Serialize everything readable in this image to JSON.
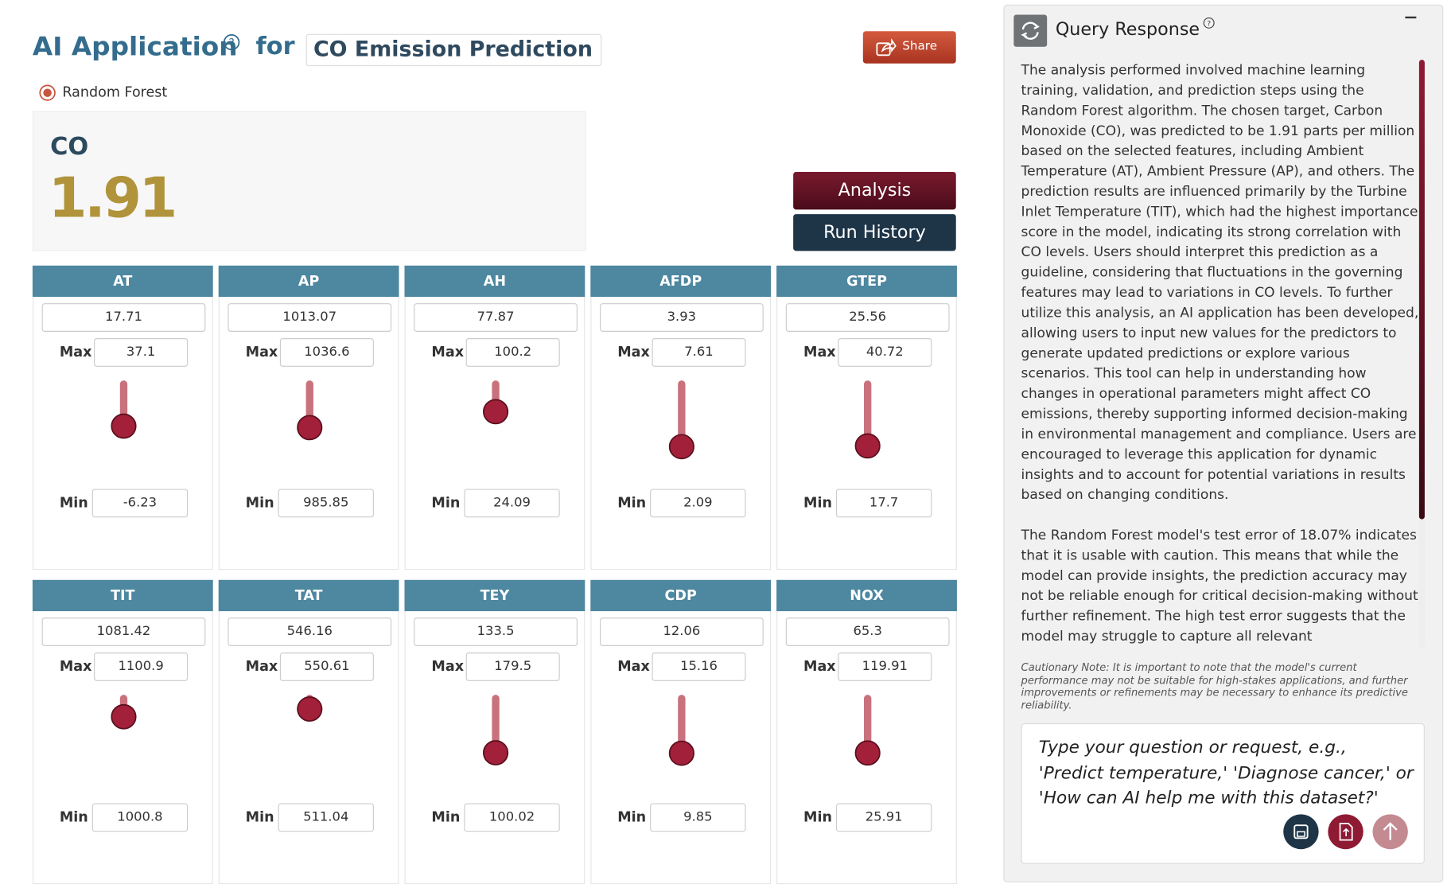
{
  "header": {
    "title": "AI Application",
    "connector": "for",
    "project": "CO Emission Prediction",
    "share": "Share"
  },
  "model": {
    "option": "Random Forest"
  },
  "prediction": {
    "target": "CO",
    "value": "1.91"
  },
  "buttons": {
    "analysis": "Analysis",
    "history": "Run History"
  },
  "labels": {
    "max": "Max",
    "min": "Min"
  },
  "features": [
    {
      "name": "AT",
      "value": 17.71,
      "max": 37.1,
      "min": -6.23
    },
    {
      "name": "AP",
      "value": 1013.07,
      "max": 1036.6,
      "min": 985.85
    },
    {
      "name": "AH",
      "value": 77.87,
      "max": 100.2,
      "min": 24.09
    },
    {
      "name": "AFDP",
      "value": 3.93,
      "max": 7.61,
      "min": 2.09
    },
    {
      "name": "GTEP",
      "value": 25.56,
      "max": 40.72,
      "min": 17.7
    },
    {
      "name": "TIT",
      "value": 1081.42,
      "max": 1100.9,
      "min": 1000.8
    },
    {
      "name": "TAT",
      "value": 546.16,
      "max": 550.61,
      "min": 511.04
    },
    {
      "name": "TEY",
      "value": 133.5,
      "max": 179.5,
      "min": 100.02
    },
    {
      "name": "CDP",
      "value": 12.06,
      "max": 15.16,
      "min": 9.85
    },
    {
      "name": "NOX",
      "value": 65.3,
      "max": 119.91,
      "min": 25.91
    }
  ],
  "panel": {
    "title": "Query Response",
    "paragraphs": [
      "The analysis performed involved machine learning training, validation, and prediction steps using the Random Forest algorithm. The chosen target, Carbon Monoxide (CO), was predicted to be 1.91 parts per million based on the selected features, including Ambient Temperature (AT), Ambient Pressure (AP), and others. The prediction results are influenced primarily by the Turbine Inlet Temperature (TIT), which had the highest importance score in the model, indicating its strong correlation with CO levels. Users should interpret this prediction as a guideline, considering that fluctuations in the governing features may lead to variations in CO levels. To further utilize this analysis, an AI application has been developed, allowing users to input new values for the predictors to generate updated predictions or explore various scenarios. This tool can help in understanding how changes in operational parameters might affect CO emissions, thereby supporting informed decision-making in environmental management and compliance. Users are encouraged to leverage this application for dynamic insights and to account for potential variations in results based on changing conditions.",
      "The Random Forest model's test error of 18.07% indicates that it is usable with caution. This means that while the model can provide insights, the prediction accuracy may not be reliable enough for critical decision-making without further refinement. The high test error suggests that the model may struggle to capture all relevant"
    ],
    "note": "Cautionary Note: It is important to note that the model's current performance may not be suitable for high-stakes applications, and further improvements or refinements may be necessary to enhance its predictive reliability.",
    "placeholder": "Type your question or request, e.g., 'Predict temperature,' 'Diagnose cancer,' or 'How can AI help me with this dataset?'"
  }
}
